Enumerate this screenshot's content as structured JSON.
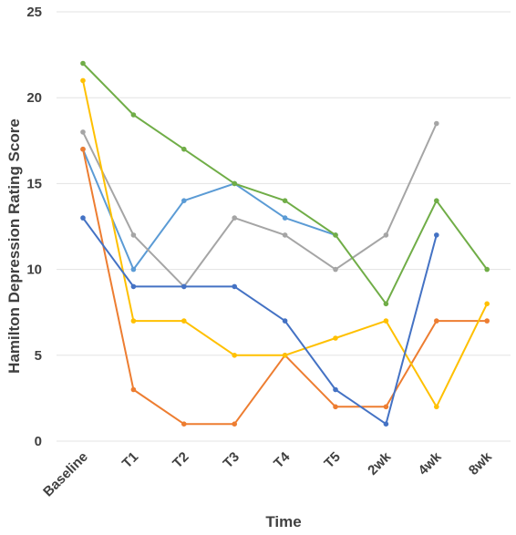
{
  "chart_data": {
    "type": "line",
    "title": "",
    "xlabel": "Time",
    "ylabel": "Hamilton Depression Rating Score",
    "categories": [
      "Baseline",
      "T1",
      "T2",
      "T3",
      "T4",
      "T5",
      "2wk",
      "4wk",
      "8wk"
    ],
    "ylim": [
      0,
      25
    ],
    "yticks": [
      0,
      5,
      10,
      15,
      20,
      25
    ],
    "grid": true,
    "legend": "none",
    "series": [
      {
        "color": "#5b9bd5",
        "values": [
          17,
          10,
          14,
          15,
          13,
          12,
          null,
          null,
          null
        ]
      },
      {
        "color": "#ed7d31",
        "values": [
          17,
          3,
          1,
          1,
          5,
          2,
          2,
          7,
          7
        ]
      },
      {
        "color": "#a5a5a5",
        "values": [
          18,
          12,
          9,
          13,
          12,
          10,
          12,
          18.5,
          null
        ]
      },
      {
        "color": "#ffc000",
        "values": [
          21,
          7,
          7,
          5,
          5,
          6,
          7,
          2,
          8
        ]
      },
      {
        "color": "#4472c4",
        "values": [
          13,
          9,
          9,
          9,
          7,
          3,
          1,
          12,
          null
        ]
      },
      {
        "color": "#70ad47",
        "values": [
          22,
          19,
          17,
          15,
          14,
          12,
          8,
          14,
          10
        ]
      }
    ]
  }
}
